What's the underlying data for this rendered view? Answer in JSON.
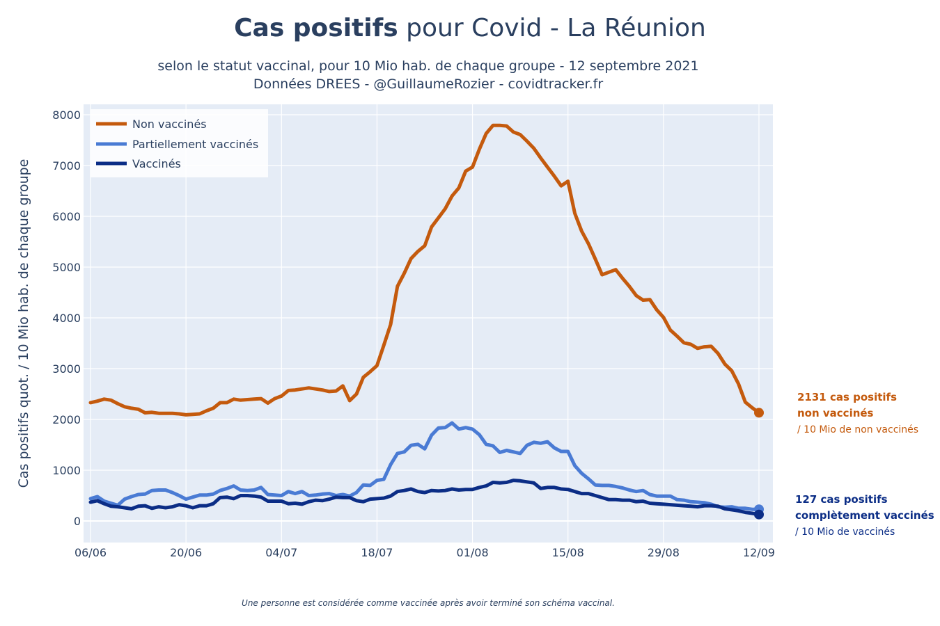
{
  "header": {
    "title_bold": "Cas positifs",
    "title_rest": " pour Covid - La Réunion",
    "subtitle_line1": "selon le statut vaccinal, pour 10 Mio hab. de chaque groupe - 12 septembre 2021",
    "subtitle_line2": "Données DREES - @GuillaumeRozier - covidtracker.fr"
  },
  "footnote": "Une personne est considérée comme vaccinée après avoir terminé son schéma vaccinal.",
  "annotations": {
    "non_vax_line1": "2131 cas positifs",
    "non_vax_line2": "non vaccinés",
    "non_vax_line3": "/ 10 Mio de non vaccinés",
    "vax_line1": "127 cas positifs",
    "vax_line2": "complètement vaccinés",
    "vax_line3": "/ 10 Mio de vaccinés"
  },
  "colors": {
    "non_vaccines": "#c45a0d",
    "partiellement": "#4a7bd4",
    "vaccines": "#0b2d86",
    "plot_bg": "#e5ecf6",
    "title": "#2a3f5f"
  },
  "chart_data": {
    "type": "line",
    "title": "Cas positifs pour Covid - La Réunion",
    "ylabel": "Cas positifs quot. / 10 Mio hab. de chaque groupe",
    "xlabel": "",
    "ylim": [
      -400,
      8200
    ],
    "grid": true,
    "legend_position": "top-left",
    "x_ticks": [
      "06/06",
      "20/06",
      "04/07",
      "18/07",
      "01/08",
      "15/08",
      "29/08",
      "12/09"
    ],
    "y_ticks": [
      0,
      1000,
      2000,
      3000,
      4000,
      5000,
      6000,
      7000,
      8000
    ],
    "x_start": "2021-06-06",
    "series": [
      {
        "name": "Non vaccinés",
        "color": "#c45a0d",
        "values": [
          2330,
          2360,
          2400,
          2380,
          2310,
          2250,
          2220,
          2200,
          2130,
          2140,
          2120,
          2120,
          2120,
          2110,
          2090,
          2100,
          2110,
          2170,
          2220,
          2330,
          2330,
          2400,
          2380,
          2390,
          2400,
          2410,
          2320,
          2410,
          2460,
          2570,
          2580,
          2600,
          2620,
          2600,
          2580,
          2550,
          2560,
          2660,
          2370,
          2500,
          2830,
          2940,
          3060,
          3460,
          3870,
          4620,
          4880,
          5170,
          5310,
          5420,
          5790,
          5970,
          6150,
          6400,
          6560,
          6890,
          6970,
          7320,
          7630,
          7790,
          7790,
          7780,
          7660,
          7610,
          7480,
          7340,
          7150,
          6970,
          6790,
          6600,
          6690,
          6060,
          5710,
          5460,
          5160,
          4850,
          4900,
          4950,
          4780,
          4620,
          4440,
          4350,
          4360,
          4160,
          4010,
          3760,
          3640,
          3510,
          3480,
          3400,
          3430,
          3440,
          3300,
          3090,
          2960,
          2700,
          2340,
          2230,
          2131
        ],
        "marker_end": true
      },
      {
        "name": "Partiellement vaccinés",
        "color": "#4a7bd4",
        "values": [
          440,
          480,
          390,
          350,
          310,
          430,
          480,
          520,
          530,
          600,
          610,
          610,
          560,
          500,
          430,
          470,
          510,
          510,
          530,
          600,
          640,
          690,
          610,
          600,
          610,
          660,
          520,
          510,
          500,
          580,
          540,
          580,
          500,
          510,
          530,
          540,
          500,
          520,
          490,
          560,
          710,
          700,
          800,
          820,
          1110,
          1330,
          1360,
          1490,
          1510,
          1420,
          1690,
          1830,
          1840,
          1930,
          1810,
          1840,
          1810,
          1700,
          1510,
          1480,
          1350,
          1390,
          1360,
          1330,
          1490,
          1550,
          1530,
          1560,
          1440,
          1370,
          1370,
          1090,
          940,
          830,
          710,
          700,
          700,
          680,
          650,
          610,
          580,
          600,
          520,
          490,
          490,
          490,
          420,
          410,
          380,
          370,
          360,
          330,
          280,
          270,
          280,
          250,
          250,
          230,
          230
        ],
        "marker_end": true
      },
      {
        "name": "Vaccinés",
        "color": "#0b2d86",
        "values": [
          370,
          400,
          340,
          290,
          280,
          260,
          240,
          290,
          300,
          250,
          280,
          260,
          280,
          320,
          300,
          260,
          300,
          300,
          340,
          460,
          470,
          440,
          500,
          500,
          490,
          470,
          390,
          390,
          390,
          340,
          350,
          330,
          380,
          410,
          400,
          430,
          470,
          460,
          460,
          400,
          380,
          430,
          440,
          450,
          490,
          580,
          600,
          630,
          580,
          560,
          600,
          590,
          600,
          630,
          610,
          620,
          620,
          660,
          690,
          760,
          750,
          760,
          800,
          790,
          770,
          750,
          640,
          660,
          660,
          630,
          620,
          580,
          540,
          540,
          500,
          460,
          420,
          420,
          410,
          410,
          380,
          390,
          350,
          340,
          330,
          320,
          310,
          300,
          290,
          280,
          300,
          300,
          290,
          240,
          220,
          200,
          170,
          150,
          127
        ],
        "marker_end": true
      }
    ]
  }
}
